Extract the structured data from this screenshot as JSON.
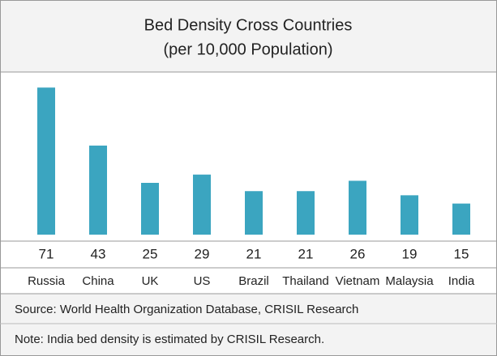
{
  "chart_data": {
    "type": "bar",
    "title": "Bed Density Cross Countries",
    "subtitle": "(per 10,000 Population)",
    "categories": [
      "Russia",
      "China",
      "UK",
      "US",
      "Brazil",
      "Thailand",
      "Vietnam",
      "Malaysia",
      "India"
    ],
    "values": [
      71,
      43,
      25,
      29,
      21,
      21,
      26,
      19,
      15
    ],
    "color": "#3ba5c0",
    "source": "Source: World Health Organization Database, CRISIL Research",
    "note": "Note: India bed density is estimated by CRISIL Research."
  }
}
